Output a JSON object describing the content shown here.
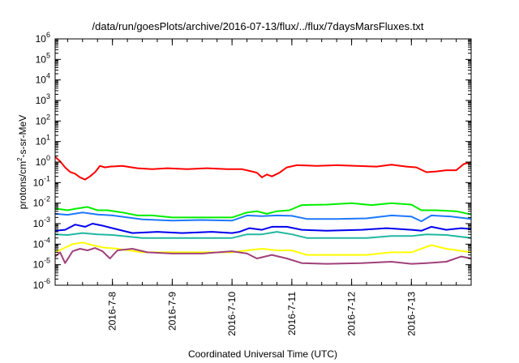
{
  "chart_data": {
    "type": "line",
    "title": "/data/run/goesPlots/archive/2016-07-13/flux/../flux/7daysMarsFluxes.txt",
    "xlabel": "Coordinated Universal Time (UTC)",
    "ylabel": "protons/cm2-s-sr-MeV",
    "ylabel_parts": {
      "base": "protons/cm",
      "sup": "2",
      "rest": "-s-sr-MeV"
    },
    "yscale": "log",
    "ylim": [
      1e-06,
      1000000.0
    ],
    "xlim": [
      "2016-07-07T01:00",
      "2016-07-13T23:59"
    ],
    "grid": false,
    "y_ticks": [
      {
        "base": "10",
        "exp": "-6",
        "value": 1e-06
      },
      {
        "base": "10",
        "exp": "-5",
        "value": 1e-05
      },
      {
        "base": "10",
        "exp": "-4",
        "value": 0.0001
      },
      {
        "base": "10",
        "exp": "-3",
        "value": 0.001
      },
      {
        "base": "10",
        "exp": "-2",
        "value": 0.01
      },
      {
        "base": "10",
        "exp": "-1",
        "value": 0.1
      },
      {
        "base": "10",
        "exp": "0",
        "value": 1
      },
      {
        "base": "10",
        "exp": "1",
        "value": 10
      },
      {
        "base": "10",
        "exp": "2",
        "value": 100
      },
      {
        "base": "10",
        "exp": "3",
        "value": 1000
      },
      {
        "base": "10",
        "exp": "4",
        "value": 10000
      },
      {
        "base": "10",
        "exp": "5",
        "value": 100000
      },
      {
        "base": "10",
        "exp": "6",
        "value": 1000000
      }
    ],
    "x_ticks": [
      {
        "label": "2016-7-8",
        "value": "2016-07-08T00:00"
      },
      {
        "label": "2016-7-9",
        "value": "2016-07-09T00:00"
      },
      {
        "label": "2016-7-10",
        "value": "2016-07-10T00:00"
      },
      {
        "label": "2016-7-11",
        "value": "2016-07-11T00:00"
      },
      {
        "label": "2016-7-12",
        "value": "2016-07-12T00:00"
      },
      {
        "label": "2016-7-13",
        "value": "2016-07-13T00:00"
      }
    ],
    "series": [
      {
        "color": "#ff0000",
        "points": [
          [
            "2016-07-07T01:00",
            1.8
          ],
          [
            "2016-07-07T03:00",
            1.1
          ],
          [
            "2016-07-07T05:00",
            0.55
          ],
          [
            "2016-07-07T07:00",
            0.33
          ],
          [
            "2016-07-07T09:00",
            0.27
          ],
          [
            "2016-07-07T11:00",
            0.18
          ],
          [
            "2016-07-07T13:00",
            0.14
          ],
          [
            "2016-07-07T15:00",
            0.2
          ],
          [
            "2016-07-07T17:00",
            0.32
          ],
          [
            "2016-07-07T19:00",
            0.65
          ],
          [
            "2016-07-07T21:00",
            0.55
          ],
          [
            "2016-07-07T23:00",
            0.6
          ],
          [
            "2016-07-08T04:00",
            0.65
          ],
          [
            "2016-07-08T10:00",
            0.5
          ],
          [
            "2016-07-08T16:00",
            0.45
          ],
          [
            "2016-07-08T22:00",
            0.5
          ],
          [
            "2016-07-09T06:00",
            0.45
          ],
          [
            "2016-07-09T14:00",
            0.5
          ],
          [
            "2016-07-09T22:00",
            0.45
          ],
          [
            "2016-07-10T04:00",
            0.45
          ],
          [
            "2016-07-10T08:00",
            0.35
          ],
          [
            "2016-07-10T10:00",
            0.3
          ],
          [
            "2016-07-10T12:00",
            0.18
          ],
          [
            "2016-07-10T14:00",
            0.25
          ],
          [
            "2016-07-10T16:00",
            0.2
          ],
          [
            "2016-07-10T19:00",
            0.3
          ],
          [
            "2016-07-10T22:00",
            0.55
          ],
          [
            "2016-07-11T02:00",
            0.7
          ],
          [
            "2016-07-11T10:00",
            0.65
          ],
          [
            "2016-07-11T18:00",
            0.7
          ],
          [
            "2016-07-12T02:00",
            0.65
          ],
          [
            "2016-07-12T10:00",
            0.6
          ],
          [
            "2016-07-12T16:00",
            0.75
          ],
          [
            "2016-07-12T22:00",
            0.6
          ],
          [
            "2016-07-13T02:00",
            0.55
          ],
          [
            "2016-07-13T06:00",
            0.32
          ],
          [
            "2016-07-13T10:00",
            0.35
          ],
          [
            "2016-07-13T14:00",
            0.4
          ],
          [
            "2016-07-13T18:00",
            0.4
          ],
          [
            "2016-07-13T21:00",
            0.8
          ],
          [
            "2016-07-13T23:59",
            1.0
          ]
        ]
      },
      {
        "color": "#00ee00",
        "points": [
          [
            "2016-07-07T01:00",
            0.0055
          ],
          [
            "2016-07-07T06:00",
            0.0045
          ],
          [
            "2016-07-07T10:00",
            0.0055
          ],
          [
            "2016-07-07T14:00",
            0.0065
          ],
          [
            "2016-07-07T18:00",
            0.0045
          ],
          [
            "2016-07-07T22:00",
            0.0045
          ],
          [
            "2016-07-08T04:00",
            0.0035
          ],
          [
            "2016-07-08T10:00",
            0.0025
          ],
          [
            "2016-07-08T16:00",
            0.0025
          ],
          [
            "2016-07-09T00:00",
            0.002
          ],
          [
            "2016-07-09T12:00",
            0.002
          ],
          [
            "2016-07-10T00:00",
            0.002
          ],
          [
            "2016-07-10T06:00",
            0.0035
          ],
          [
            "2016-07-10T10:00",
            0.004
          ],
          [
            "2016-07-10T14:00",
            0.003
          ],
          [
            "2016-07-10T18:00",
            0.004
          ],
          [
            "2016-07-10T23:00",
            0.0045
          ],
          [
            "2016-07-11T04:00",
            0.008
          ],
          [
            "2016-07-11T14:00",
            0.0085
          ],
          [
            "2016-07-12T00:00",
            0.01
          ],
          [
            "2016-07-12T08:00",
            0.008
          ],
          [
            "2016-07-12T16:00",
            0.01
          ],
          [
            "2016-07-13T00:00",
            0.0085
          ],
          [
            "2016-07-13T04:00",
            0.0045
          ],
          [
            "2016-07-13T10:00",
            0.0045
          ],
          [
            "2016-07-13T18:00",
            0.004
          ],
          [
            "2016-07-13T23:59",
            0.0028
          ]
        ]
      },
      {
        "color": "#1e78ff",
        "points": [
          [
            "2016-07-07T01:00",
            0.003
          ],
          [
            "2016-07-07T06:00",
            0.0027
          ],
          [
            "2016-07-07T12:00",
            0.0035
          ],
          [
            "2016-07-07T18:00",
            0.0028
          ],
          [
            "2016-07-08T00:00",
            0.0025
          ],
          [
            "2016-07-08T12:00",
            0.0016
          ],
          [
            "2016-07-09T00:00",
            0.0014
          ],
          [
            "2016-07-09T12:00",
            0.0015
          ],
          [
            "2016-07-10T00:00",
            0.0014
          ],
          [
            "2016-07-10T06:00",
            0.0025
          ],
          [
            "2016-07-10T12:00",
            0.0023
          ],
          [
            "2016-07-10T18:00",
            0.0025
          ],
          [
            "2016-07-11T00:00",
            0.0024
          ],
          [
            "2016-07-11T06:00",
            0.0017
          ],
          [
            "2016-07-11T18:00",
            0.0017
          ],
          [
            "2016-07-12T06:00",
            0.0018
          ],
          [
            "2016-07-12T16:00",
            0.0025
          ],
          [
            "2016-07-13T00:00",
            0.0022
          ],
          [
            "2016-07-13T04:00",
            0.0013
          ],
          [
            "2016-07-13T08:00",
            0.0025
          ],
          [
            "2016-07-13T16:00",
            0.0022
          ],
          [
            "2016-07-13T23:59",
            0.0017
          ]
        ]
      },
      {
        "color": "#0000ee",
        "points": [
          [
            "2016-07-07T01:00",
            0.00045
          ],
          [
            "2016-07-07T05:00",
            0.0005
          ],
          [
            "2016-07-07T09:00",
            0.0009
          ],
          [
            "2016-07-07T13:00",
            0.0007
          ],
          [
            "2016-07-07T16:00",
            0.001
          ],
          [
            "2016-07-07T20:00",
            0.0008
          ],
          [
            "2016-07-08T00:00",
            0.0006
          ],
          [
            "2016-07-08T08:00",
            0.00035
          ],
          [
            "2016-07-08T18:00",
            0.0004
          ],
          [
            "2016-07-09T04:00",
            0.00035
          ],
          [
            "2016-07-09T16:00",
            0.0004
          ],
          [
            "2016-07-10T00:00",
            0.00035
          ],
          [
            "2016-07-10T03:00",
            0.0004
          ],
          [
            "2016-07-10T07:00",
            0.0006
          ],
          [
            "2016-07-10T12:00",
            0.0005
          ],
          [
            "2016-07-10T16:00",
            0.0007
          ],
          [
            "2016-07-10T22:00",
            0.0007
          ],
          [
            "2016-07-11T04:00",
            0.0005
          ],
          [
            "2016-07-11T14:00",
            0.00045
          ],
          [
            "2016-07-12T04:00",
            0.0005
          ],
          [
            "2016-07-12T14:00",
            0.0006
          ],
          [
            "2016-07-13T00:00",
            0.0005
          ],
          [
            "2016-07-13T04:00",
            0.00045
          ],
          [
            "2016-07-13T08:00",
            0.0007
          ],
          [
            "2016-07-13T14:00",
            0.0005
          ],
          [
            "2016-07-13T20:00",
            0.0006
          ],
          [
            "2016-07-13T23:59",
            0.00055
          ]
        ]
      },
      {
        "color": "#20b8a0",
        "points": [
          [
            "2016-07-07T01:00",
            0.0003
          ],
          [
            "2016-07-07T06:00",
            0.00028
          ],
          [
            "2016-07-07T12:00",
            0.00035
          ],
          [
            "2016-07-07T18:00",
            0.0003
          ],
          [
            "2016-07-08T00:00",
            0.00028
          ],
          [
            "2016-07-08T12:00",
            0.0002
          ],
          [
            "2016-07-09T00:00",
            0.0002
          ],
          [
            "2016-07-09T12:00",
            0.0002
          ],
          [
            "2016-07-10T00:00",
            0.0002
          ],
          [
            "2016-07-10T06:00",
            0.0003
          ],
          [
            "2016-07-10T12:00",
            0.0003
          ],
          [
            "2016-07-10T18:00",
            0.0004
          ],
          [
            "2016-07-11T00:00",
            0.0003
          ],
          [
            "2016-07-11T06:00",
            0.0002
          ],
          [
            "2016-07-11T18:00",
            0.0002
          ],
          [
            "2016-07-12T06:00",
            0.0002
          ],
          [
            "2016-07-12T16:00",
            0.00025
          ],
          [
            "2016-07-13T00:00",
            0.00025
          ],
          [
            "2016-07-13T06:00",
            0.0003
          ],
          [
            "2016-07-13T14:00",
            0.00028
          ],
          [
            "2016-07-13T23:59",
            0.0002
          ]
        ]
      },
      {
        "color": "#ffff00",
        "points": [
          [
            "2016-07-07T01:00",
            4e-05
          ],
          [
            "2016-07-07T04:00",
            6e-05
          ],
          [
            "2016-07-07T08:00",
            0.0001
          ],
          [
            "2016-07-07T12:00",
            0.00012
          ],
          [
            "2016-07-07T16:00",
            9e-05
          ],
          [
            "2016-07-07T20:00",
            7e-05
          ],
          [
            "2016-07-08T02:00",
            6e-05
          ],
          [
            "2016-07-08T12:00",
            4e-05
          ],
          [
            "2016-07-09T00:00",
            4e-05
          ],
          [
            "2016-07-09T12:00",
            4e-05
          ],
          [
            "2016-07-10T00:00",
            4e-05
          ],
          [
            "2016-07-10T06:00",
            5e-05
          ],
          [
            "2016-07-10T12:00",
            6e-05
          ],
          [
            "2016-07-10T18:00",
            5e-05
          ],
          [
            "2016-07-11T00:00",
            5e-05
          ],
          [
            "2016-07-11T06:00",
            3e-05
          ],
          [
            "2016-07-11T18:00",
            3e-05
          ],
          [
            "2016-07-12T06:00",
            3e-05
          ],
          [
            "2016-07-12T16:00",
            4e-05
          ],
          [
            "2016-07-13T00:00",
            4e-05
          ],
          [
            "2016-07-13T08:00",
            9e-05
          ],
          [
            "2016-07-13T14:00",
            6e-05
          ],
          [
            "2016-07-13T23:59",
            4e-05
          ]
        ]
      },
      {
        "color": "#a0407a",
        "points": [
          [
            "2016-07-07T01:00",
            2.5e-05
          ],
          [
            "2016-07-07T03:00",
            4e-05
          ],
          [
            "2016-07-07T05:00",
            1.2e-05
          ],
          [
            "2016-07-07T08:00",
            4.5e-05
          ],
          [
            "2016-07-07T11:00",
            6e-05
          ],
          [
            "2016-07-07T14:00",
            5e-05
          ],
          [
            "2016-07-07T17:00",
            6.5e-05
          ],
          [
            "2016-07-07T20:00",
            4.5e-05
          ],
          [
            "2016-07-07T23:00",
            2e-05
          ],
          [
            "2016-07-08T02:00",
            5e-05
          ],
          [
            "2016-07-08T08:00",
            6e-05
          ],
          [
            "2016-07-08T14:00",
            4e-05
          ],
          [
            "2016-07-09T00:00",
            3.5e-05
          ],
          [
            "2016-07-09T12:00",
            3.5e-05
          ],
          [
            "2016-07-10T00:00",
            4.5e-05
          ],
          [
            "2016-07-10T06:00",
            3.5e-05
          ],
          [
            "2016-07-10T10:00",
            2e-05
          ],
          [
            "2016-07-10T16:00",
            3e-05
          ],
          [
            "2016-07-10T22:00",
            2e-05
          ],
          [
            "2016-07-11T04:00",
            1.2e-05
          ],
          [
            "2016-07-11T14:00",
            1.1e-05
          ],
          [
            "2016-07-12T04:00",
            1.2e-05
          ],
          [
            "2016-07-12T16:00",
            1.4e-05
          ],
          [
            "2016-07-13T00:00",
            1.1e-05
          ],
          [
            "2016-07-13T06:00",
            1.2e-05
          ],
          [
            "2016-07-13T14:00",
            1.4e-05
          ],
          [
            "2016-07-13T20:00",
            2.5e-05
          ],
          [
            "2016-07-13T23:59",
            2e-05
          ]
        ]
      }
    ]
  }
}
